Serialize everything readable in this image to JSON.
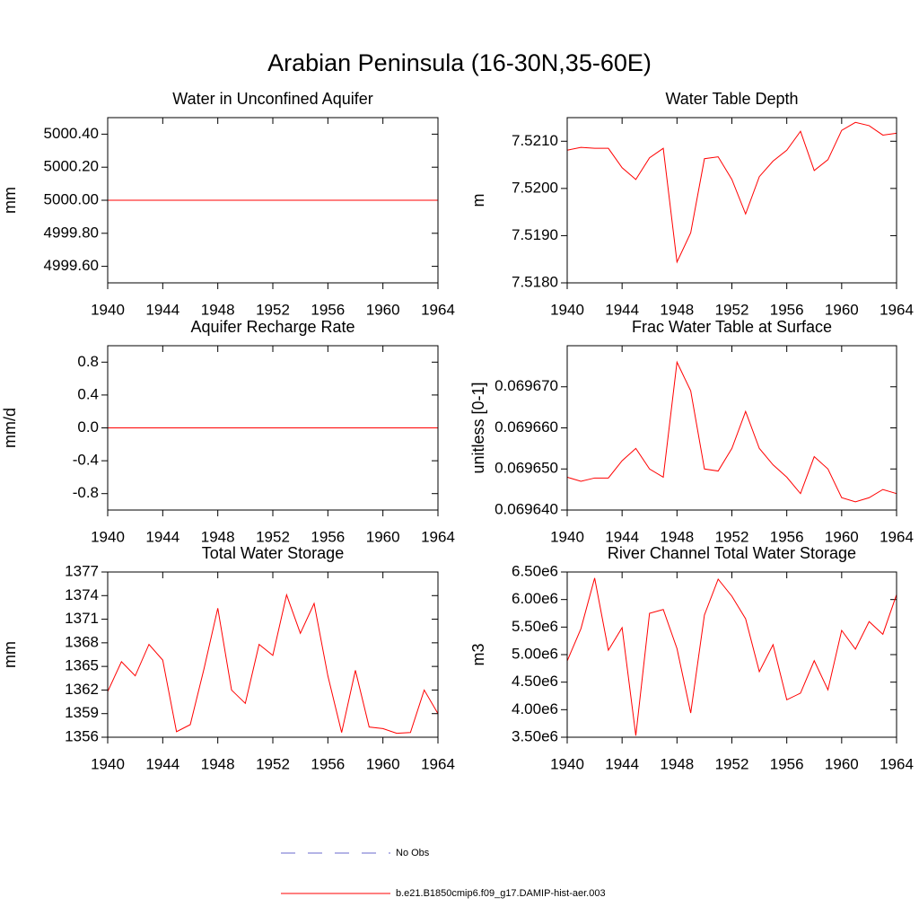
{
  "title": "Arabian Peninsula (16-30N,35-60E)",
  "legend": [
    {
      "name": "No Obs",
      "color": "#6a6acd",
      "dash": true
    },
    {
      "name": "b.e21.B1850cmip6.f09_g17.DAMIP-hist-aer.003",
      "color": "#ff0000",
      "dash": false
    }
  ],
  "chart_data": [
    {
      "type": "line",
      "title": "Water in Unconfined Aquifer",
      "ylabel": "mm",
      "color": "#ff0000",
      "x": [
        1940,
        1941,
        1942,
        1943,
        1944,
        1945,
        1946,
        1947,
        1948,
        1949,
        1950,
        1951,
        1952,
        1953,
        1954,
        1955,
        1956,
        1957,
        1958,
        1959,
        1960,
        1961,
        1962,
        1963,
        1964
      ],
      "values": [
        5000.0,
        5000.0,
        5000.0,
        5000.0,
        5000.0,
        5000.0,
        5000.0,
        5000.0,
        5000.0,
        5000.0,
        5000.0,
        5000.0,
        5000.0,
        5000.0,
        5000.0,
        5000.0,
        5000.0,
        5000.0,
        5000.0,
        5000.0,
        5000.0,
        5000.0,
        5000.0,
        5000.0,
        5000.0
      ],
      "xlim": [
        1940,
        1964
      ],
      "xticks": [
        1940,
        1944,
        1948,
        1952,
        1956,
        1960,
        1964
      ],
      "ylim": [
        4999.5,
        5000.5
      ],
      "yticks": [
        {
          "value": 4999.6,
          "label": "4999.60"
        },
        {
          "value": 4999.8,
          "label": "4999.80"
        },
        {
          "value": 5000.0,
          "label": "5000.00"
        },
        {
          "value": 5000.2,
          "label": "5000.20"
        },
        {
          "value": 5000.4,
          "label": "5000.40"
        }
      ]
    },
    {
      "type": "line",
      "title": "Water Table Depth",
      "ylabel": "m",
      "color": "#ff0000",
      "x": [
        1940,
        1941,
        1942,
        1943,
        1944,
        1945,
        1946,
        1947,
        1948,
        1949,
        1950,
        1951,
        1952,
        1953,
        1954,
        1955,
        1956,
        1957,
        1958,
        1959,
        1960,
        1961,
        1962,
        1963,
        1964
      ],
      "values": [
        7.52081,
        7.52087,
        7.52085,
        7.52085,
        7.52044,
        7.52019,
        7.52065,
        7.52085,
        7.51844,
        7.51906,
        7.52063,
        7.52067,
        7.52019,
        7.51946,
        7.52025,
        7.52058,
        7.52081,
        7.52121,
        7.52038,
        7.52061,
        7.52123,
        7.5214,
        7.52133,
        7.52113,
        7.52117
      ],
      "xlim": [
        1940,
        1964
      ],
      "xticks": [
        1940,
        1944,
        1948,
        1952,
        1956,
        1960,
        1964
      ],
      "ylim": [
        7.518,
        7.5215
      ],
      "yticks": [
        {
          "value": 7.518,
          "label": "7.5180"
        },
        {
          "value": 7.519,
          "label": "7.5190"
        },
        {
          "value": 7.52,
          "label": "7.5200"
        },
        {
          "value": 7.521,
          "label": "7.5210"
        }
      ]
    },
    {
      "type": "line",
      "title": "Aquifer Recharge Rate",
      "ylabel": "mm/d",
      "color": "#ff0000",
      "x": [
        1940,
        1941,
        1942,
        1943,
        1944,
        1945,
        1946,
        1947,
        1948,
        1949,
        1950,
        1951,
        1952,
        1953,
        1954,
        1955,
        1956,
        1957,
        1958,
        1959,
        1960,
        1961,
        1962,
        1963,
        1964
      ],
      "values": [
        0,
        0,
        0,
        0,
        0,
        0,
        0,
        0,
        0,
        0,
        0,
        0,
        0,
        0,
        0,
        0,
        0,
        0,
        0,
        0,
        0,
        0,
        0,
        0,
        0
      ],
      "xlim": [
        1940,
        1964
      ],
      "xticks": [
        1940,
        1944,
        1948,
        1952,
        1956,
        1960,
        1964
      ],
      "ylim": [
        -1,
        1
      ],
      "yticks": [
        -0.8,
        -0.4,
        {
          "value": 0,
          "label": "0.0"
        },
        0.4,
        0.8
      ]
    },
    {
      "type": "line",
      "title": "Frac Water Table at Surface",
      "ylabel": "unitless [0-1]",
      "color": "#ff0000",
      "x": [
        1940,
        1941,
        1942,
        1943,
        1944,
        1945,
        1946,
        1947,
        1948,
        1949,
        1950,
        1951,
        1952,
        1953,
        1954,
        1955,
        1956,
        1957,
        1958,
        1959,
        1960,
        1961,
        1962,
        1963,
        1964
      ],
      "values": [
        0.069648,
        0.069647,
        0.0696478,
        0.0696478,
        0.069652,
        0.069655,
        0.06965,
        0.069648,
        0.069676,
        0.069669,
        0.06965,
        0.0696495,
        0.069655,
        0.069664,
        0.069655,
        0.069651,
        0.069648,
        0.069644,
        0.069653,
        0.06965,
        0.069643,
        0.069642,
        0.069643,
        0.069645,
        0.069644
      ],
      "xlim": [
        1940,
        1964
      ],
      "xticks": [
        1940,
        1944,
        1948,
        1952,
        1956,
        1960,
        1964
      ],
      "ylim": [
        0.06964,
        0.06968
      ],
      "yticks": [
        {
          "value": 0.06964,
          "label": "0.069640"
        },
        {
          "value": 0.06965,
          "label": "0.069650"
        },
        {
          "value": 0.06966,
          "label": "0.069660"
        },
        {
          "value": 0.06967,
          "label": "0.069670"
        }
      ]
    },
    {
      "type": "line",
      "title": "Total Water Storage",
      "ylabel": "mm",
      "color": "#ff0000",
      "x": [
        1940,
        1941,
        1942,
        1943,
        1944,
        1945,
        1946,
        1947,
        1948,
        1949,
        1950,
        1951,
        1952,
        1953,
        1954,
        1955,
        1956,
        1957,
        1958,
        1959,
        1960,
        1961,
        1962,
        1963,
        1964
      ],
      "values": [
        1361.8,
        1365.6,
        1363.8,
        1367.8,
        1365.8,
        1356.7,
        1357.6,
        1364.7,
        1372.4,
        1362.0,
        1360.3,
        1367.8,
        1366.4,
        1374.1,
        1369.2,
        1373.0,
        1363.8,
        1356.6,
        1364.5,
        1357.3,
        1357.1,
        1356.5,
        1356.6,
        1362.0,
        1359.0
      ],
      "xlim": [
        1940,
        1964
      ],
      "xticks": [
        1940,
        1944,
        1948,
        1952,
        1956,
        1960,
        1964
      ],
      "ylim": [
        1356,
        1377
      ],
      "yticks": [
        1356,
        1359,
        1362,
        1365,
        1368,
        1371,
        1374,
        1377
      ]
    },
    {
      "type": "line",
      "title": "River Channel Total Water Storage",
      "ylabel": "m3",
      "color": "#ff0000",
      "x": [
        1940,
        1941,
        1942,
        1943,
        1944,
        1945,
        1946,
        1947,
        1948,
        1949,
        1950,
        1951,
        1952,
        1953,
        1954,
        1955,
        1956,
        1957,
        1958,
        1959,
        1960,
        1961,
        1962,
        1963,
        1964
      ],
      "values": [
        4885000,
        5470000,
        6390000,
        5080000,
        5490000,
        3530000,
        5750000,
        5820000,
        5110000,
        3940000,
        5720000,
        6370000,
        6060000,
        5650000,
        4690000,
        5180000,
        4180000,
        4300000,
        4890000,
        4360000,
        5440000,
        5100000,
        5600000,
        5370000,
        6090000
      ],
      "xlim": [
        1940,
        1964
      ],
      "xticks": [
        1940,
        1944,
        1948,
        1952,
        1956,
        1960,
        1964
      ],
      "ylim": [
        3500000,
        6500000
      ],
      "yticks": [
        {
          "value": 3500000,
          "label": "3.50e6"
        },
        {
          "value": 4000000,
          "label": "4.00e6"
        },
        {
          "value": 4500000,
          "label": "4.50e6"
        },
        {
          "value": 5000000,
          "label": "5.00e6"
        },
        {
          "value": 5500000,
          "label": "5.50e6"
        },
        {
          "value": 6000000,
          "label": "6.00e6"
        },
        {
          "value": 6500000,
          "label": "6.50e6"
        }
      ]
    }
  ]
}
